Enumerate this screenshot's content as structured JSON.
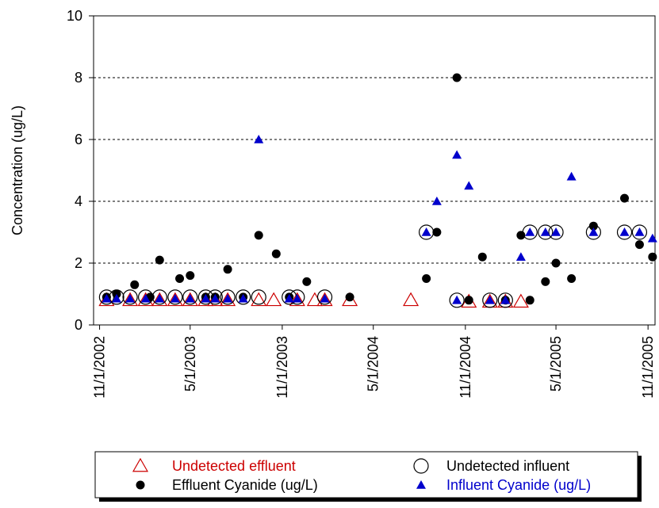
{
  "chart_data": {
    "type": "scatter",
    "title": "",
    "xlabel": "",
    "ylabel": "Concentration (ug/L)",
    "ylim": [
      0,
      10
    ],
    "yticks": [
      0,
      2,
      4,
      6,
      8,
      10
    ],
    "xlim": [
      "2002-10-20",
      "2005-11-15"
    ],
    "xticks": [
      "11/1/2002",
      "5/1/2003",
      "11/1/2003",
      "5/1/2004",
      "11/1/2004",
      "5/1/2005",
      "11/1/2005"
    ],
    "grid": "horizontal-dashed",
    "legend_position": "bottom",
    "colors": {
      "undetected_effluent": "#cc0000",
      "undetected_influent": "#000000",
      "effluent": "#000000",
      "influent": "#0000cc"
    },
    "series": [
      {
        "name": "Undetected effluent",
        "marker": "open-triangle",
        "color": "#cc0000",
        "points": [
          {
            "x": "2002-11-15",
            "y": 0.8
          },
          {
            "x": "2003-01-01",
            "y": 0.8
          },
          {
            "x": "2003-02-01",
            "y": 0.8
          },
          {
            "x": "2003-03-01",
            "y": 0.8
          },
          {
            "x": "2003-04-01",
            "y": 0.8
          },
          {
            "x": "2003-05-01",
            "y": 0.8
          },
          {
            "x": "2003-06-01",
            "y": 0.8
          },
          {
            "x": "2003-06-20",
            "y": 0.8
          },
          {
            "x": "2003-07-15",
            "y": 0.8
          },
          {
            "x": "2003-09-15",
            "y": 0.8
          },
          {
            "x": "2003-10-15",
            "y": 0.8
          },
          {
            "x": "2003-12-01",
            "y": 0.8
          },
          {
            "x": "2004-01-05",
            "y": 0.8
          },
          {
            "x": "2004-01-25",
            "y": 0.8
          },
          {
            "x": "2004-03-15",
            "y": 0.8
          },
          {
            "x": "2004-07-15",
            "y": 0.8
          },
          {
            "x": "2004-11-08",
            "y": 0.75
          },
          {
            "x": "2004-12-20",
            "y": 0.75
          },
          {
            "x": "2005-01-20",
            "y": 0.75
          },
          {
            "x": "2005-02-20",
            "y": 0.75
          }
        ]
      },
      {
        "name": "Undetected influent",
        "marker": "open-circle",
        "color": "#000000",
        "points": [
          {
            "x": "2002-11-15",
            "y": 0.9
          },
          {
            "x": "2002-12-05",
            "y": 0.9
          },
          {
            "x": "2003-01-01",
            "y": 0.9
          },
          {
            "x": "2003-02-01",
            "y": 0.9
          },
          {
            "x": "2003-03-01",
            "y": 0.9
          },
          {
            "x": "2003-04-01",
            "y": 0.9
          },
          {
            "x": "2003-05-01",
            "y": 0.9
          },
          {
            "x": "2003-06-01",
            "y": 0.9
          },
          {
            "x": "2003-06-20",
            "y": 0.9
          },
          {
            "x": "2003-07-15",
            "y": 0.9
          },
          {
            "x": "2003-08-15",
            "y": 0.9
          },
          {
            "x": "2003-09-15",
            "y": 0.9
          },
          {
            "x": "2003-11-15",
            "y": 0.9
          },
          {
            "x": "2003-12-01",
            "y": 0.9
          },
          {
            "x": "2004-01-25",
            "y": 0.9
          },
          {
            "x": "2004-08-15",
            "y": 3.0
          },
          {
            "x": "2004-10-15",
            "y": 0.8
          },
          {
            "x": "2004-12-20",
            "y": 0.8
          },
          {
            "x": "2005-01-20",
            "y": 0.8
          },
          {
            "x": "2005-03-10",
            "y": 3.0
          },
          {
            "x": "2005-04-10",
            "y": 3.0
          },
          {
            "x": "2005-05-01",
            "y": 3.0
          },
          {
            "x": "2005-07-15",
            "y": 3.0
          },
          {
            "x": "2005-09-15",
            "y": 3.0
          },
          {
            "x": "2005-10-15",
            "y": 3.0
          }
        ]
      },
      {
        "name": "Effluent Cyanide (ug/L)",
        "marker": "filled-circle",
        "color": "#000000",
        "points": [
          {
            "x": "2002-11-15",
            "y": 0.9
          },
          {
            "x": "2002-12-05",
            "y": 1.0
          },
          {
            "x": "2003-01-10",
            "y": 1.3
          },
          {
            "x": "2003-02-10",
            "y": 0.9
          },
          {
            "x": "2003-03-01",
            "y": 2.1
          },
          {
            "x": "2003-04-10",
            "y": 1.5
          },
          {
            "x": "2003-05-01",
            "y": 1.6
          },
          {
            "x": "2003-06-01",
            "y": 0.9
          },
          {
            "x": "2003-06-20",
            "y": 0.9
          },
          {
            "x": "2003-07-15",
            "y": 1.8
          },
          {
            "x": "2003-08-15",
            "y": 0.9
          },
          {
            "x": "2003-09-15",
            "y": 2.9
          },
          {
            "x": "2003-10-20",
            "y": 2.3
          },
          {
            "x": "2003-11-15",
            "y": 0.9
          },
          {
            "x": "2003-12-20",
            "y": 1.4
          },
          {
            "x": "2004-03-15",
            "y": 0.9
          },
          {
            "x": "2004-08-15",
            "y": 1.5
          },
          {
            "x": "2004-09-05",
            "y": 3.0
          },
          {
            "x": "2004-10-15",
            "y": 8.0
          },
          {
            "x": "2004-11-08",
            "y": 0.8
          },
          {
            "x": "2004-12-05",
            "y": 2.2
          },
          {
            "x": "2005-01-20",
            "y": 0.8
          },
          {
            "x": "2005-02-20",
            "y": 2.9
          },
          {
            "x": "2005-03-10",
            "y": 0.8
          },
          {
            "x": "2005-04-10",
            "y": 1.4
          },
          {
            "x": "2005-05-01",
            "y": 2.0
          },
          {
            "x": "2005-06-01",
            "y": 1.5
          },
          {
            "x": "2005-07-15",
            "y": 3.2
          },
          {
            "x": "2005-09-15",
            "y": 4.1
          },
          {
            "x": "2005-10-15",
            "y": 2.6
          },
          {
            "x": "2005-11-10",
            "y": 2.2
          }
        ]
      },
      {
        "name": "Influent Cyanide (ug/L)",
        "marker": "filled-triangle",
        "color": "#0000cc",
        "points": [
          {
            "x": "2002-11-15",
            "y": 0.85
          },
          {
            "x": "2002-12-05",
            "y": 0.85
          },
          {
            "x": "2003-01-01",
            "y": 0.85
          },
          {
            "x": "2003-02-01",
            "y": 0.85
          },
          {
            "x": "2003-03-01",
            "y": 0.85
          },
          {
            "x": "2003-04-01",
            "y": 0.85
          },
          {
            "x": "2003-05-01",
            "y": 0.85
          },
          {
            "x": "2003-06-01",
            "y": 0.85
          },
          {
            "x": "2003-06-20",
            "y": 0.85
          },
          {
            "x": "2003-07-15",
            "y": 0.85
          },
          {
            "x": "2003-08-15",
            "y": 0.85
          },
          {
            "x": "2003-09-15",
            "y": 6.0
          },
          {
            "x": "2003-11-15",
            "y": 0.85
          },
          {
            "x": "2003-12-01",
            "y": 0.85
          },
          {
            "x": "2004-01-25",
            "y": 0.85
          },
          {
            "x": "2004-08-15",
            "y": 3.0
          },
          {
            "x": "2004-09-05",
            "y": 4.0
          },
          {
            "x": "2004-10-15",
            "y": 0.8
          },
          {
            "x": "2004-10-15",
            "y": 5.5
          },
          {
            "x": "2004-11-08",
            "y": 4.5
          },
          {
            "x": "2004-12-20",
            "y": 0.8
          },
          {
            "x": "2005-01-20",
            "y": 0.8
          },
          {
            "x": "2005-02-20",
            "y": 2.2
          },
          {
            "x": "2005-03-10",
            "y": 3.0
          },
          {
            "x": "2005-04-10",
            "y": 3.0
          },
          {
            "x": "2005-05-01",
            "y": 3.0
          },
          {
            "x": "2005-06-01",
            "y": 4.8
          },
          {
            "x": "2005-07-15",
            "y": 3.0
          },
          {
            "x": "2005-09-15",
            "y": 3.0
          },
          {
            "x": "2005-10-15",
            "y": 3.0
          },
          {
            "x": "2005-11-10",
            "y": 2.8
          }
        ]
      }
    ],
    "legend": [
      {
        "label": "Undetected effluent",
        "marker": "open-triangle",
        "color": "#cc0000",
        "text_color": "#cc0000"
      },
      {
        "label": "Undetected influent",
        "marker": "open-circle",
        "color": "#000000",
        "text_color": "#000000"
      },
      {
        "label": "Effluent Cyanide (ug/L)",
        "marker": "filled-circle",
        "color": "#000000",
        "text_color": "#000000"
      },
      {
        "label": "Influent Cyanide (ug/L)",
        "marker": "filled-triangle",
        "color": "#0000cc",
        "text_color": "#0000cc"
      }
    ]
  }
}
